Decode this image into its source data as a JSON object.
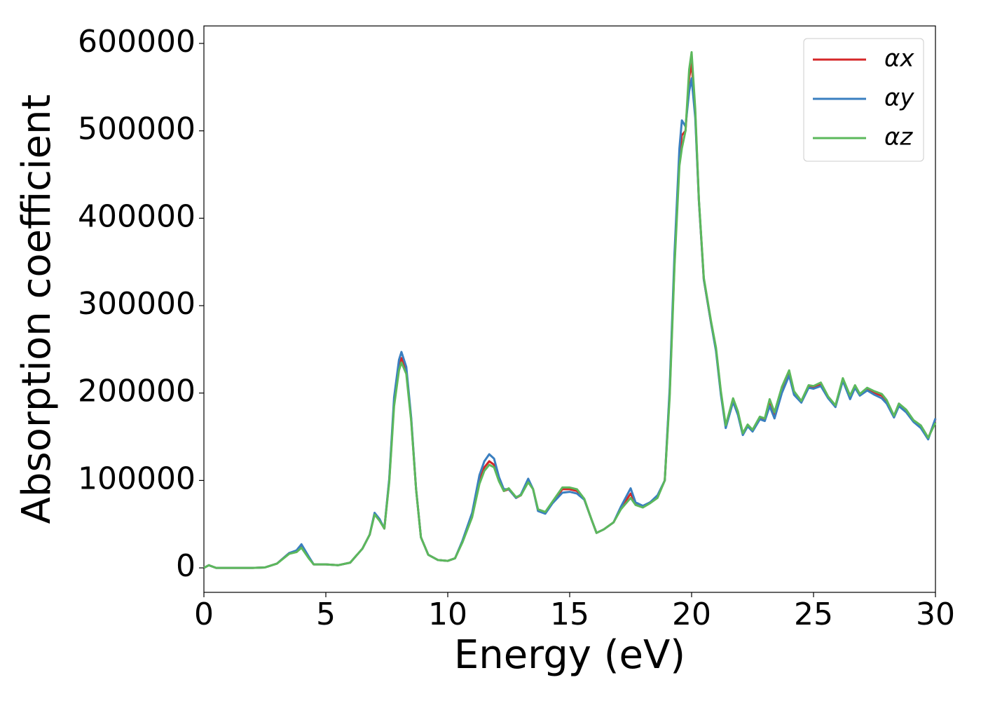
{
  "chart_data": {
    "type": "line",
    "xlabel": "Energy (eV)",
    "ylabel": "Absorption coefficient",
    "x": [
      0,
      0.2,
      0.5,
      1,
      2,
      2.5,
      3,
      3.5,
      3.8,
      4.0,
      4.3,
      4.5,
      5,
      5.5,
      6,
      6.5,
      6.8,
      7.0,
      7.2,
      7.4,
      7.6,
      7.8,
      8.0,
      8.1,
      8.3,
      8.5,
      8.7,
      8.9,
      9.2,
      9.6,
      10.0,
      10.3,
      10.6,
      11.0,
      11.3,
      11.5,
      11.7,
      11.9,
      12.1,
      12.3,
      12.5,
      12.8,
      13.0,
      13.3,
      13.5,
      13.7,
      14.0,
      14.3,
      14.7,
      15.0,
      15.3,
      15.6,
      15.9,
      16.1,
      16.4,
      16.8,
      17.1,
      17.5,
      17.7,
      18.0,
      18.3,
      18.6,
      18.9,
      19.1,
      19.3,
      19.5,
      19.6,
      19.75,
      19.9,
      20.0,
      20.15,
      20.3,
      20.5,
      20.8,
      21.0,
      21.2,
      21.4,
      21.7,
      21.9,
      22.1,
      22.3,
      22.5,
      22.8,
      23.0,
      23.2,
      23.4,
      23.7,
      24.0,
      24.2,
      24.5,
      24.8,
      25.0,
      25.3,
      25.6,
      25.9,
      26.2,
      26.5,
      26.7,
      26.9,
      27.2,
      27.5,
      27.8,
      28.0,
      28.3,
      28.5,
      28.8,
      29.1,
      29.4,
      29.7,
      30.0
    ],
    "series": [
      {
        "name": "αx",
        "color": "#d62728",
        "values": [
          0,
          3000,
          0,
          0,
          0,
          500,
          5000,
          17000,
          19000,
          26000,
          12000,
          4000,
          4000,
          3000,
          6000,
          22000,
          38000,
          62000,
          55000,
          45000,
          100000,
          190000,
          230000,
          240000,
          225000,
          170000,
          90000,
          35000,
          15000,
          9000,
          8000,
          11000,
          30000,
          60000,
          100000,
          115000,
          122000,
          118000,
          100000,
          88000,
          90000,
          80000,
          83000,
          100000,
          90000,
          66000,
          63000,
          75000,
          90000,
          90000,
          88000,
          78000,
          55000,
          40000,
          44000,
          52000,
          68000,
          85000,
          73000,
          70000,
          75000,
          81000,
          100000,
          200000,
          350000,
          470000,
          495000,
          500000,
          560000,
          578000,
          520000,
          420000,
          330000,
          280000,
          250000,
          200000,
          162000,
          193000,
          178000,
          153000,
          163000,
          157000,
          172000,
          170000,
          190000,
          175000,
          205000,
          223000,
          200000,
          190000,
          208000,
          207000,
          210000,
          195000,
          185000,
          215000,
          195000,
          208000,
          198000,
          205000,
          200000,
          197000,
          190000,
          173000,
          187000,
          180000,
          168000,
          162000,
          148000,
          170000
        ]
      },
      {
        "name": "αy",
        "color": "#3a7fc0",
        "values": [
          0,
          3000,
          0,
          0,
          0,
          500,
          5000,
          17000,
          20000,
          27000,
          13000,
          4000,
          4000,
          3000,
          6000,
          22000,
          38000,
          63000,
          56000,
          45000,
          102000,
          195000,
          238000,
          247000,
          230000,
          172000,
          90000,
          35000,
          15000,
          9000,
          8000,
          11000,
          31000,
          63000,
          106000,
          122000,
          130000,
          125000,
          104000,
          90000,
          90000,
          80000,
          84000,
          102000,
          90000,
          65000,
          62000,
          74000,
          86000,
          87000,
          85000,
          78000,
          55000,
          40000,
          44000,
          52000,
          70000,
          91000,
          75000,
          71000,
          75000,
          83000,
          100000,
          205000,
          360000,
          480000,
          512000,
          505000,
          545000,
          560000,
          515000,
          420000,
          330000,
          280000,
          248000,
          198000,
          160000,
          190000,
          175000,
          152000,
          162000,
          156000,
          170000,
          168000,
          185000,
          171000,
          200000,
          220000,
          198000,
          189000,
          206000,
          205000,
          208000,
          194000,
          184000,
          214000,
          193000,
          206000,
          197000,
          203000,
          198000,
          194000,
          188000,
          172000,
          185000,
          178000,
          167000,
          160000,
          147000,
          171000
        ]
      },
      {
        "name": "αz",
        "color": "#5cb85c",
        "values": [
          0,
          3000,
          0,
          0,
          0,
          500,
          5000,
          16000,
          18000,
          23000,
          11000,
          4000,
          4000,
          3000,
          6000,
          22000,
          38000,
          61000,
          54000,
          45000,
          98000,
          185000,
          226000,
          235000,
          222000,
          168000,
          90000,
          35000,
          15000,
          9000,
          8000,
          11000,
          29000,
          58000,
          96000,
          111000,
          118000,
          115000,
          99000,
          88000,
          91000,
          81000,
          83000,
          98000,
          90000,
          67000,
          64000,
          76000,
          92000,
          92000,
          90000,
          79000,
          55000,
          40000,
          44000,
          52000,
          67000,
          80000,
          72000,
          69000,
          74000,
          80000,
          100000,
          195000,
          345000,
          460000,
          480000,
          500000,
          570000,
          590000,
          525000,
          422000,
          332000,
          282000,
          252000,
          202000,
          163000,
          194000,
          179000,
          154000,
          164000,
          158000,
          173000,
          171000,
          193000,
          178000,
          207000,
          226000,
          202000,
          191000,
          209000,
          208000,
          212000,
          196000,
          186000,
          217000,
          197000,
          209000,
          199000,
          206000,
          202000,
          199000,
          192000,
          174000,
          188000,
          181000,
          169000,
          163000,
          149000,
          166000
        ]
      }
    ],
    "xlim": [
      0,
      30
    ],
    "xticks": [
      0,
      5,
      10,
      15,
      20,
      25,
      30
    ],
    "ylim": [
      -28000,
      620000
    ],
    "yticks": [
      0,
      100000,
      200000,
      300000,
      400000,
      500000,
      600000
    ],
    "legend": "upper right"
  }
}
